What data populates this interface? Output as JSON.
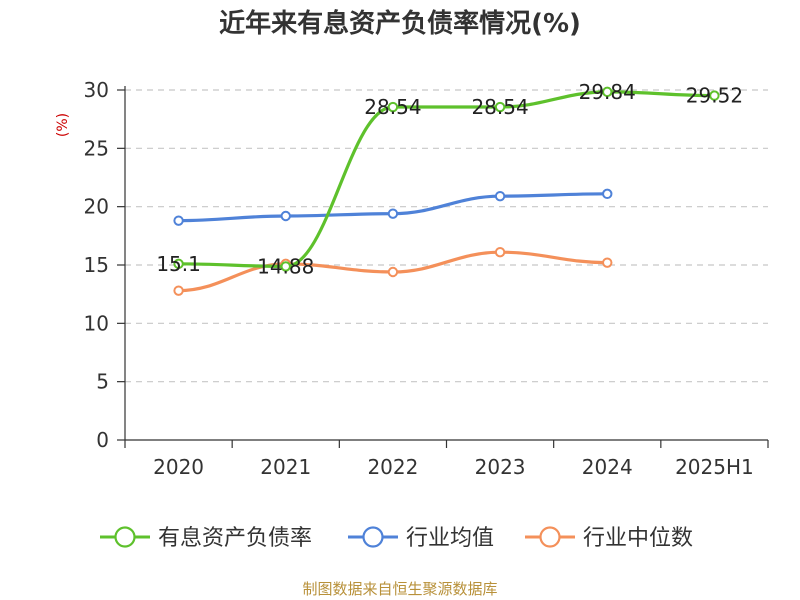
{
  "chart_data": {
    "type": "line",
    "title": "近年来有息资产负债率情况(%)",
    "ylabel": "(%)",
    "xlabel": "",
    "ylim": [
      0,
      30
    ],
    "yticks": [
      0,
      5,
      10,
      15,
      20,
      25,
      30
    ],
    "grid": true,
    "legend_position": "bottom",
    "categories": [
      "2020",
      "2021",
      "2022",
      "2023",
      "2024",
      "2025H1"
    ],
    "series": [
      {
        "name": "有息资产负债率",
        "color": "#5ec12c",
        "values": [
          15.1,
          14.88,
          28.54,
          28.54,
          29.84,
          29.52
        ],
        "labels": [
          "15.1",
          "14.88",
          "28.54",
          "28.54",
          "29.84",
          "29.52"
        ]
      },
      {
        "name": "行业均值",
        "color": "#4f82d8",
        "values": [
          18.8,
          19.2,
          19.4,
          20.9,
          21.1,
          null
        ]
      },
      {
        "name": "行业中位数",
        "color": "#f4905a",
        "values": [
          12.8,
          15.1,
          14.4,
          16.1,
          15.2,
          null
        ]
      }
    ]
  },
  "source": "制图数据来自恒生聚源数据库"
}
